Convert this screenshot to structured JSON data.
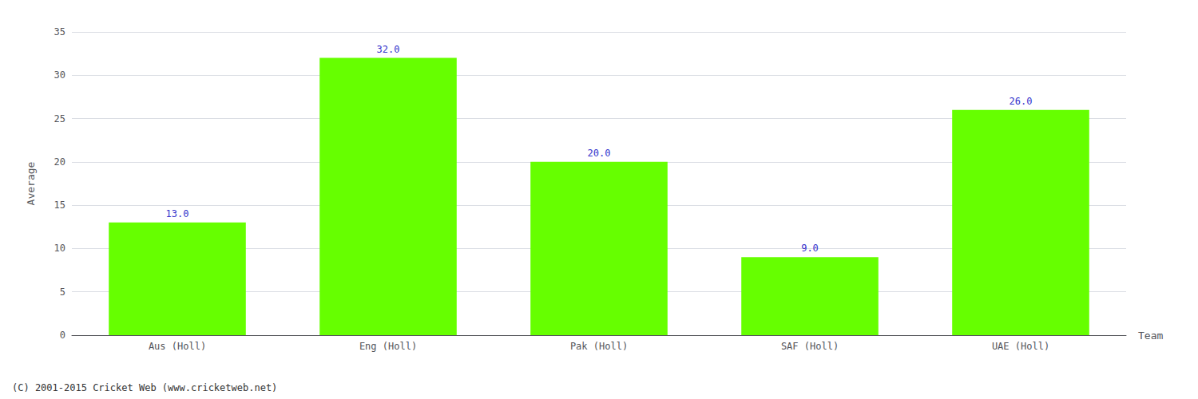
{
  "chart_data": {
    "type": "bar",
    "categories": [
      "Aus (Holl)",
      "Eng (Holl)",
      "Pak (Holl)",
      "SAF (Holl)",
      "UAE (Holl)"
    ],
    "values": [
      13.0,
      32.0,
      20.0,
      9.0,
      26.0
    ],
    "value_labels": [
      "13.0",
      "32.0",
      "20.0",
      "9.0",
      "26.0"
    ],
    "data_labels": true,
    "color": "#66ff00",
    "xlabel": "Team",
    "ylabel": "Average",
    "ylim": [
      0,
      35
    ],
    "yticks": [
      0,
      5,
      10,
      15,
      20,
      25,
      30,
      35
    ],
    "grid": true,
    "footnote": "(C) 2001-2015 Cricket Web (www.cricketweb.net)"
  }
}
